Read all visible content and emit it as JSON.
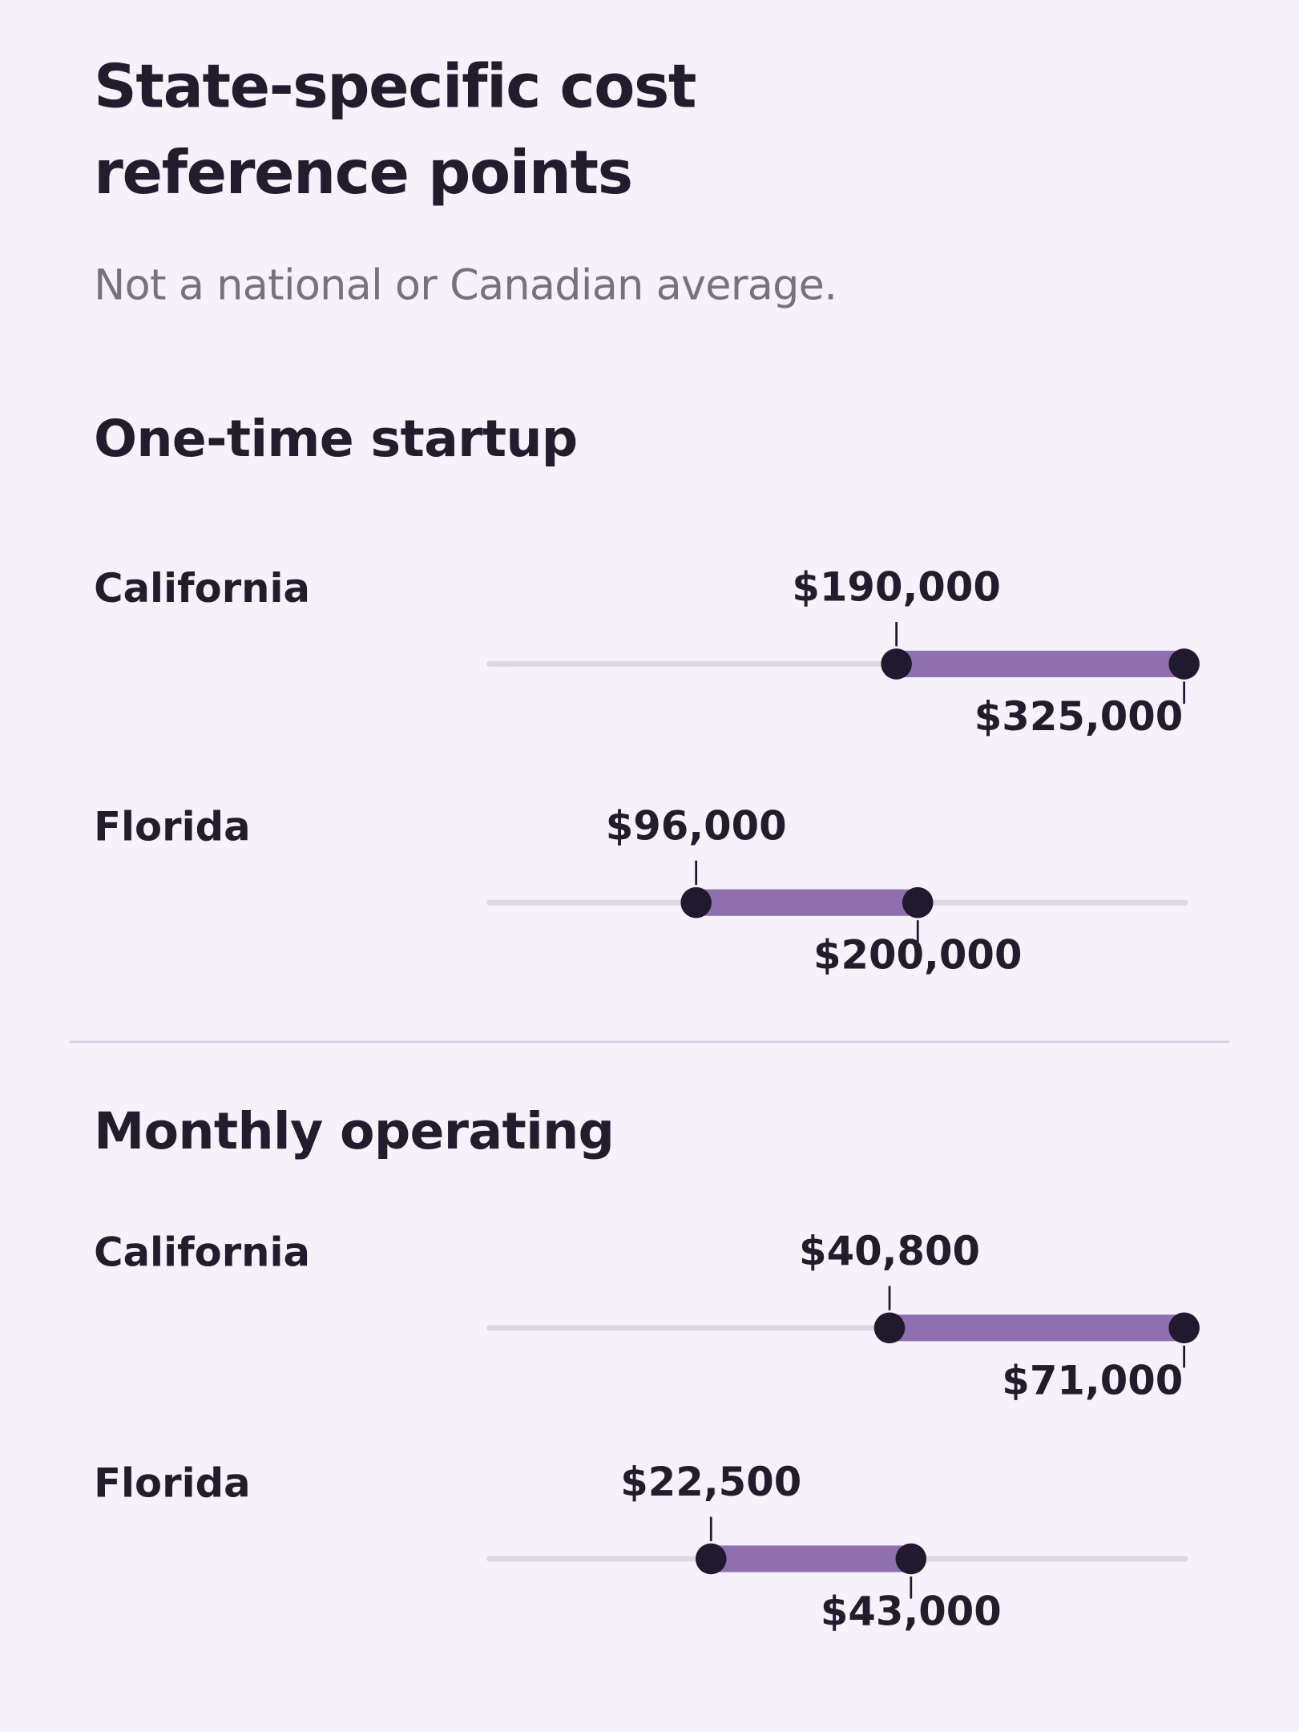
{
  "header": {
    "title": "State-specific cost reference points",
    "subtitle": "Not a national or Canadian average."
  },
  "chart_data": [
    {
      "type": "dumbbell",
      "title": "One-time startup",
      "categories": [
        "California",
        "Florida"
      ],
      "values": [
        [
          190000,
          325000
        ],
        [
          96000,
          200000
        ]
      ],
      "value_labels": [
        [
          "$190,000",
          "$325,000"
        ],
        [
          "$96,000",
          "$200,000"
        ]
      ],
      "xlim": [
        0,
        325000
      ],
      "color": "#8e6fb0",
      "dot_color": "#1f1a2e",
      "track_color": "#dcd8e2"
    },
    {
      "type": "dumbbell",
      "title": "Monthly operating",
      "categories": [
        "California",
        "Florida"
      ],
      "values": [
        [
          40800,
          71000
        ],
        [
          22500,
          43000
        ]
      ],
      "value_labels": [
        [
          "$40,800",
          "$71,000"
        ],
        [
          "$22,500",
          "$43,000"
        ]
      ],
      "xlim": [
        0,
        71000
      ],
      "color": "#8e6fb0",
      "dot_color": "#1f1a2e",
      "track_color": "#dcd8e2"
    }
  ]
}
